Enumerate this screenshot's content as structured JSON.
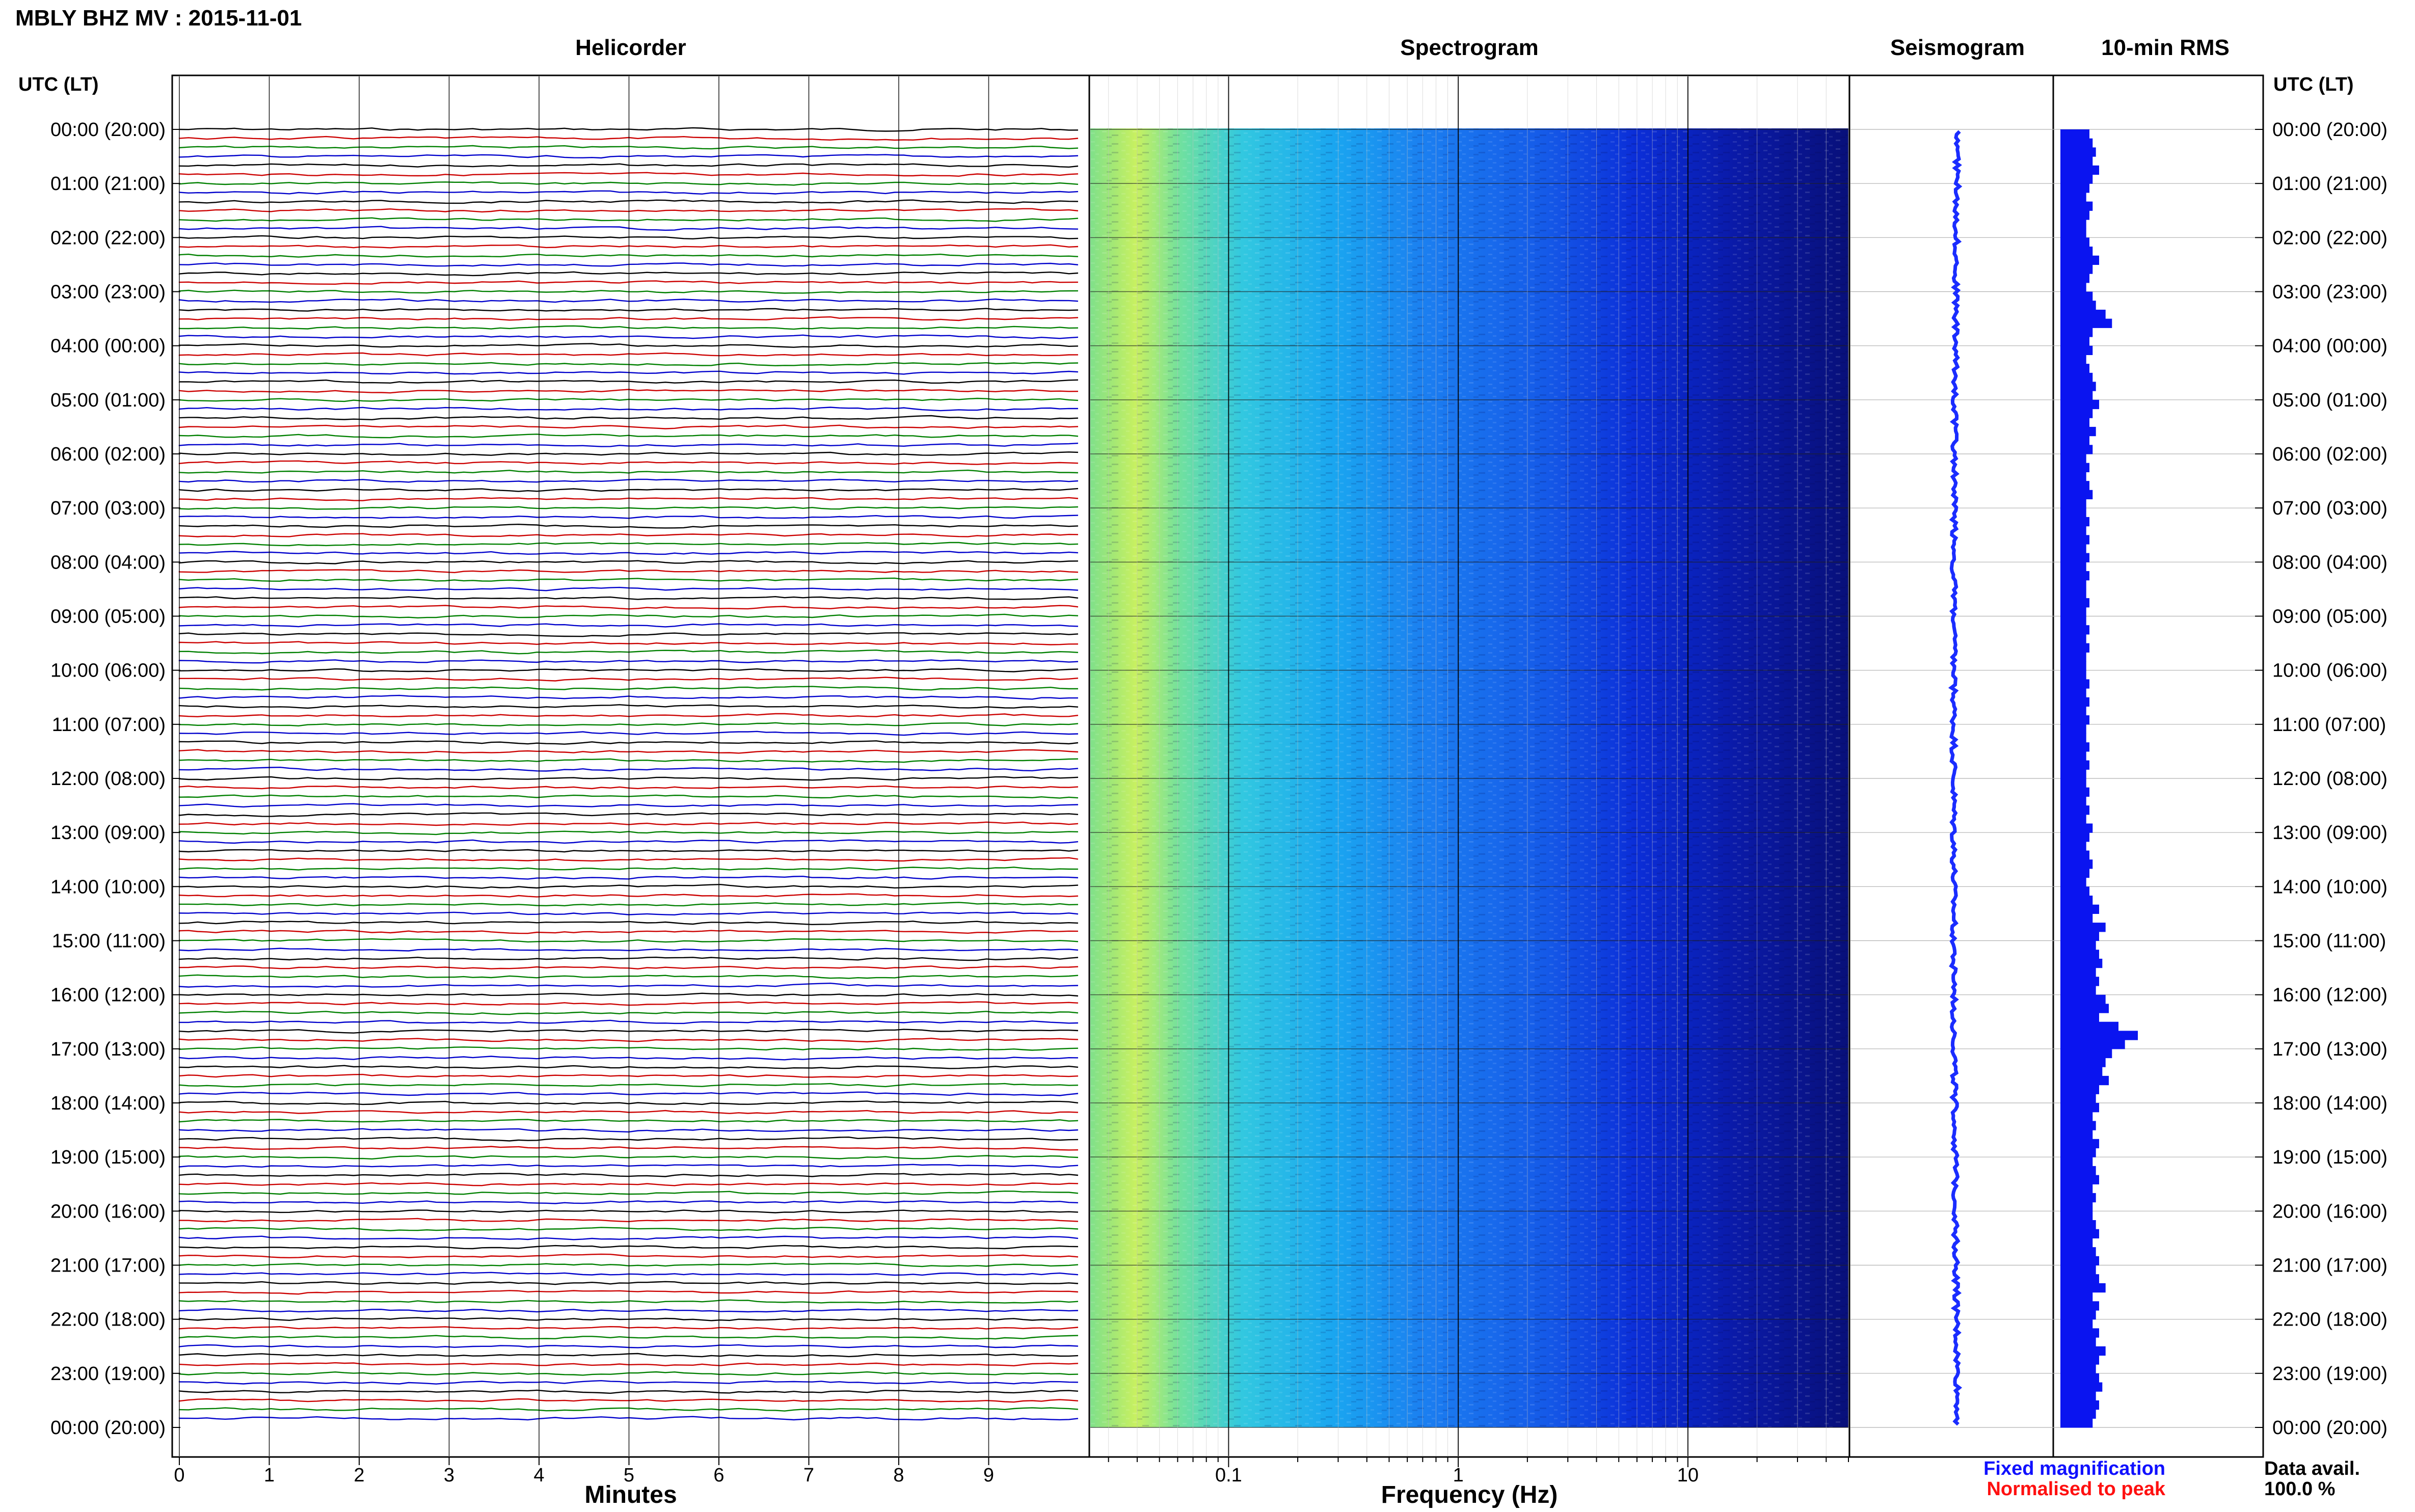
{
  "header": {
    "title": "MBLY BHZ MV : 2015-11-01"
  },
  "panels": {
    "helicorder_title": "Helicorder",
    "spectrogram_title": "Spectrogram",
    "seismogram_title": "Seismogram",
    "rms_title": "10-min RMS"
  },
  "axes": {
    "left_header": "UTC (LT)",
    "right_header": "UTC (LT)",
    "minutes_label": "Minutes",
    "frequency_label": "Frequency (Hz)",
    "minute_ticks": [
      "0",
      "1",
      "2",
      "3",
      "4",
      "5",
      "6",
      "7",
      "8",
      "9"
    ],
    "frequency_ticks": [
      "0.1",
      "1",
      "10"
    ],
    "time_ticks": [
      "00:00 (20:00)",
      "01:00 (21:00)",
      "02:00 (22:00)",
      "03:00 (23:00)",
      "04:00 (00:00)",
      "05:00 (01:00)",
      "06:00 (02:00)",
      "07:00 (03:00)",
      "08:00 (04:00)",
      "09:00 (05:00)",
      "10:00 (06:00)",
      "11:00 (07:00)",
      "12:00 (08:00)",
      "13:00 (09:00)",
      "14:00 (10:00)",
      "15:00 (11:00)",
      "16:00 (12:00)",
      "17:00 (13:00)",
      "18:00 (14:00)",
      "19:00 (15:00)",
      "20:00 (16:00)",
      "21:00 (17:00)",
      "22:00 (18:00)",
      "23:00 (19:00)",
      "00:00 (20:00)"
    ]
  },
  "legend": {
    "fixed": "Fixed magnification",
    "normalised": "Normalised to peak",
    "fixed_color": "#1010ff",
    "normalised_color": "#ff1010"
  },
  "data_avail": {
    "label": "Data avail.",
    "value": "100.0 %"
  },
  "colors": {
    "helicorder_traces": [
      "#000000",
      "#cc0000",
      "#008000",
      "#0000cc"
    ],
    "rms_bar": "#0a14f0",
    "seismogram": "#1a2cff"
  },
  "chart_data": {
    "type": "bar",
    "title": "10-min RMS",
    "description_axis": "UTC hour",
    "x_start_hour": 0,
    "x_step_hours": 0.1667,
    "values": [
      0.45,
      0.5,
      0.55,
      0.5,
      0.6,
      0.5,
      0.45,
      0.4,
      0.5,
      0.45,
      0.4,
      0.4,
      0.45,
      0.5,
      0.6,
      0.5,
      0.45,
      0.4,
      0.5,
      0.55,
      0.7,
      0.8,
      0.5,
      0.45,
      0.5,
      0.4,
      0.45,
      0.5,
      0.55,
      0.5,
      0.6,
      0.5,
      0.45,
      0.55,
      0.45,
      0.5,
      0.4,
      0.45,
      0.4,
      0.45,
      0.5,
      0.4,
      0.4,
      0.45,
      0.4,
      0.45,
      0.4,
      0.45,
      0.4,
      0.45,
      0.4,
      0.4,
      0.45,
      0.4,
      0.4,
      0.45,
      0.4,
      0.45,
      0.4,
      0.4,
      0.4,
      0.45,
      0.4,
      0.45,
      0.4,
      0.45,
      0.4,
      0.4,
      0.45,
      0.4,
      0.45,
      0.4,
      0.4,
      0.45,
      0.4,
      0.45,
      0.4,
      0.5,
      0.45,
      0.4,
      0.45,
      0.5,
      0.45,
      0.4,
      0.45,
      0.5,
      0.6,
      0.5,
      0.7,
      0.6,
      0.55,
      0.6,
      0.65,
      0.55,
      0.6,
      0.55,
      0.7,
      0.75,
      0.6,
      0.9,
      1.2,
      1.0,
      0.8,
      0.7,
      0.65,
      0.75,
      0.6,
      0.55,
      0.6,
      0.5,
      0.55,
      0.5,
      0.6,
      0.55,
      0.5,
      0.55,
      0.6,
      0.5,
      0.55,
      0.5,
      0.5,
      0.55,
      0.6,
      0.5,
      0.55,
      0.6,
      0.55,
      0.6,
      0.7,
      0.5,
      0.6,
      0.55,
      0.5,
      0.6,
      0.55,
      0.7,
      0.6,
      0.55,
      0.6,
      0.65,
      0.55,
      0.6,
      0.55,
      0.5
    ],
    "xlim": [
      0,
      24
    ],
    "ylim": [
      0,
      1.5
    ]
  }
}
